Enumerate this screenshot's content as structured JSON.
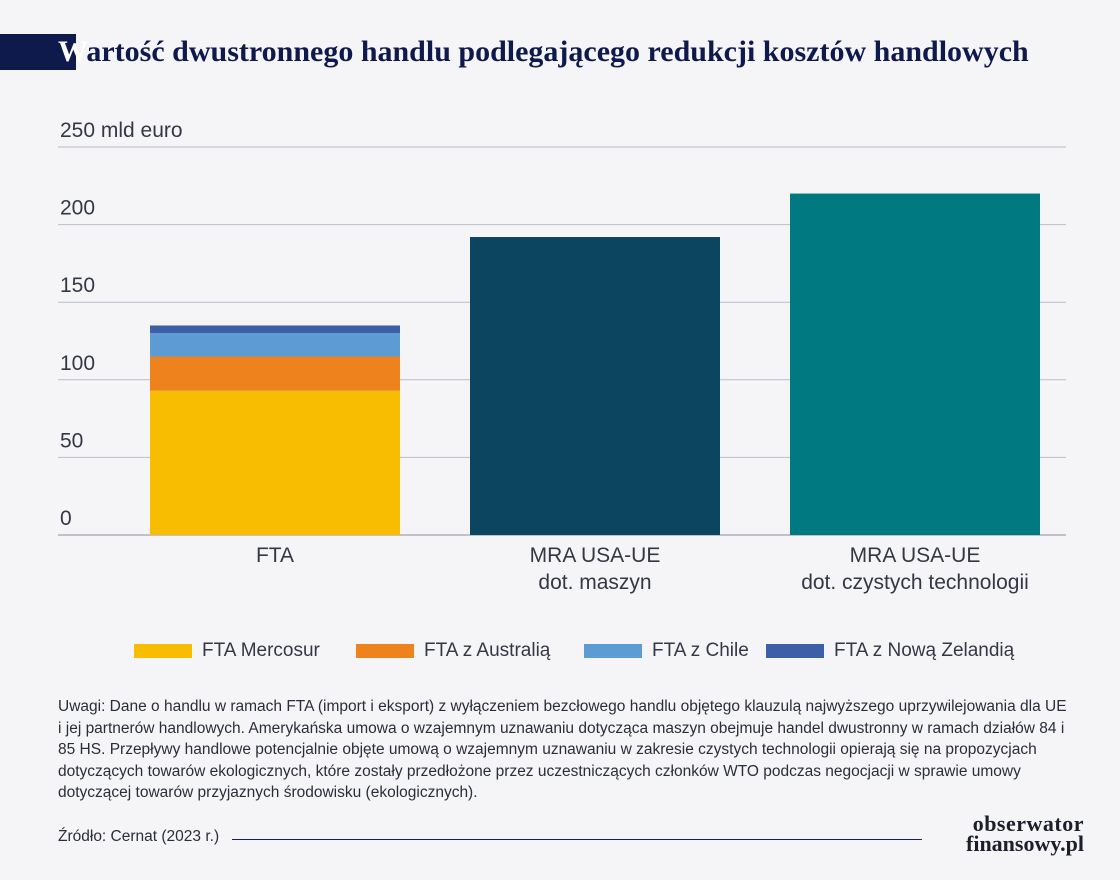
{
  "title": {
    "first_letter": "W",
    "rest": "artość dwustronnego handlu podlegającego redukcji kosztów handlowych"
  },
  "chart_data": {
    "type": "bar",
    "stacked": true,
    "title": "Wartość dwustronnego handlu podlegającego redukcji kosztów handlowych",
    "ylabel": "mld euro",
    "ylim": [
      0,
      250
    ],
    "yticks": [
      0,
      50,
      100,
      150,
      200,
      250
    ],
    "ytick_labels": [
      "0",
      "50",
      "100",
      "150",
      "200",
      "250 mld euro"
    ],
    "grid": true,
    "categories": [
      [
        "FTA"
      ],
      [
        "MRA USA-UE",
        "dot. maszyn"
      ],
      [
        "MRA USA-UE",
        "dot. czystych technologii"
      ]
    ],
    "series": [
      {
        "name": "FTA Mercosur",
        "color": "#f8bd00",
        "values": [
          93,
          0,
          0
        ]
      },
      {
        "name": "FTA z Australią",
        "color": "#ee821d",
        "values": [
          22,
          0,
          0
        ]
      },
      {
        "name": "FTA z Chile",
        "color": "#5c9bd4",
        "values": [
          15,
          0,
          0
        ]
      },
      {
        "name": "FTA z Nową Zelandią",
        "color": "#3d5fa8",
        "values": [
          5,
          0,
          0
        ]
      },
      {
        "name": "",
        "color": "#0b4560",
        "values": [
          0,
          192,
          0
        ]
      },
      {
        "name": "",
        "color": "#007a80",
        "values": [
          0,
          0,
          220
        ]
      }
    ],
    "legend_position": "bottom"
  },
  "notes": "Uwagi: Dane o handlu w ramach FTA (import i eksport) z wyłączeniem bezcłowego handlu objętego klauzulą najwyższego uprzywilejowania dla UE i jej partnerów handlowych. Amerykańska umowa o wzajemnym uznawaniu dotycząca maszyn obejmuje handel dwustronny w ramach działów 84 i 85 HS. Przepływy handlowe potencjalnie objęte umową o wzajemnym uznawaniu w zakresie czystych technologii opierają się na propozycjach dotyczących towarów ekologicznych, które zostały przedłożone przez uczestniczących członków WTO podczas negocjacji w sprawie umowy dotyczącej towarów przyjaznych środowisku (ekologicznych).",
  "source": "Źródło: Cernat (2023 r.)",
  "logo": {
    "line1": "obserwator",
    "line2": "finansowy.pl"
  }
}
